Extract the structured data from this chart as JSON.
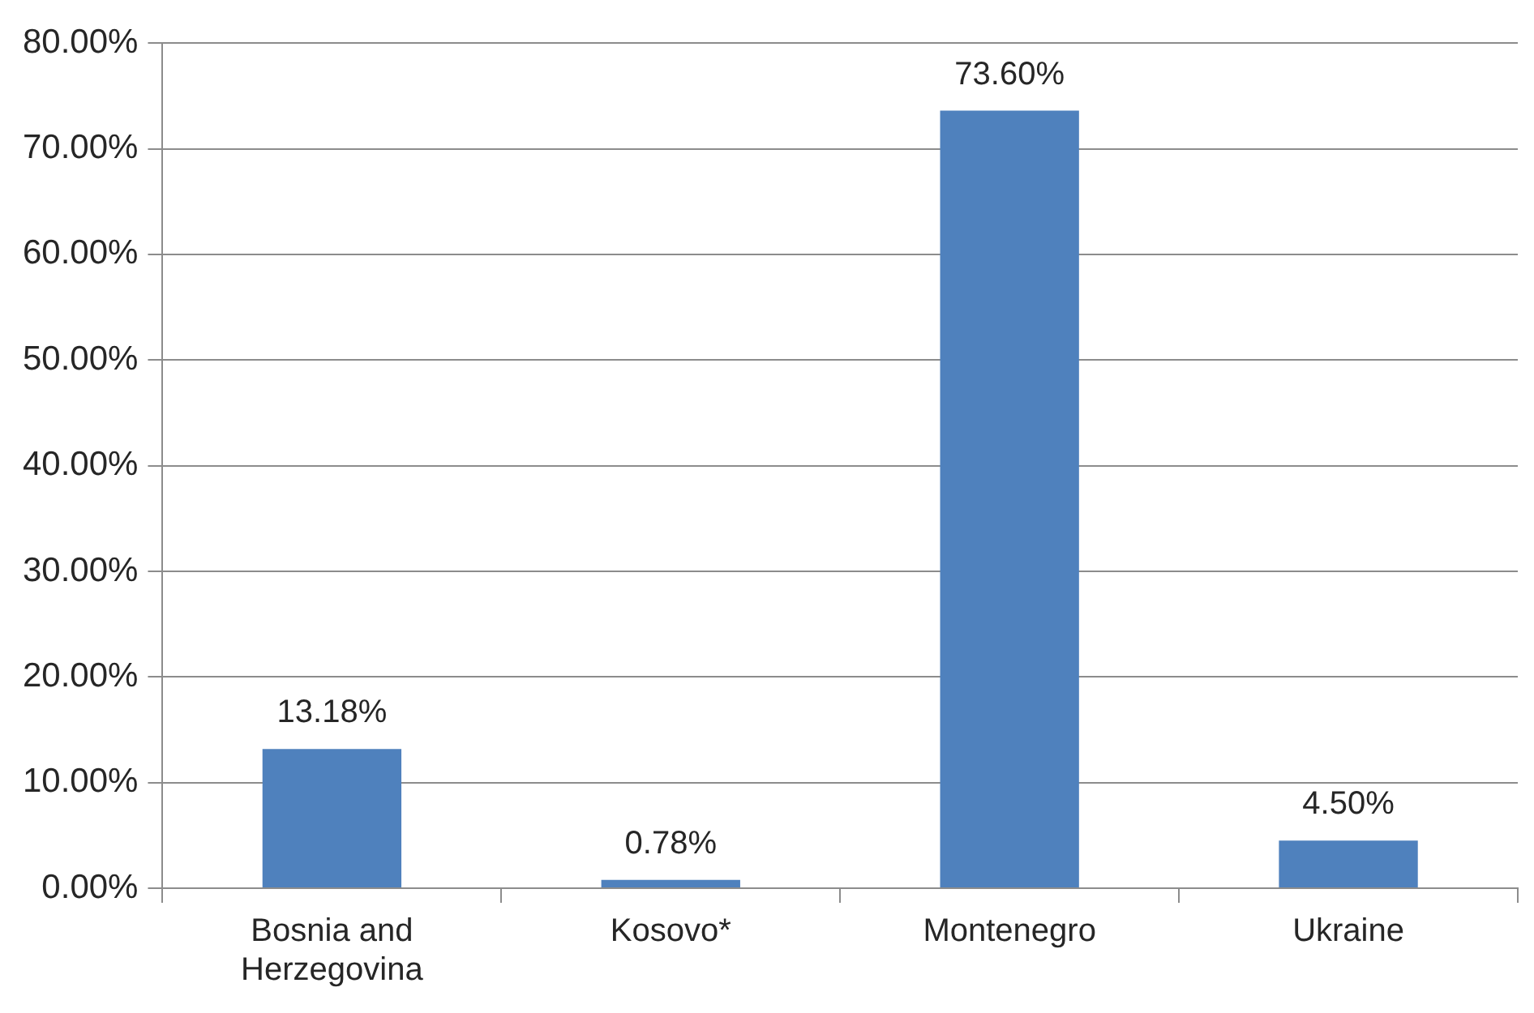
{
  "chart_data": {
    "type": "bar",
    "categories": [
      "Bosnia and Herzegovina",
      "Kosovo*",
      "Montenegro",
      "Ukraine"
    ],
    "values": [
      13.18,
      0.78,
      73.6,
      4.5
    ],
    "color": "#4f81bd",
    "value_labels": [
      "13.18%",
      "0.78%",
      "73.60%",
      "4.50%"
    ],
    "ylim": [
      0,
      80
    ],
    "yticks": [
      {
        "value": 0,
        "label": "0.00%"
      },
      {
        "value": 10,
        "label": "10.00%"
      },
      {
        "value": 20,
        "label": "20.00%"
      },
      {
        "value": 30,
        "label": "30.00%"
      },
      {
        "value": 40,
        "label": "40.00%"
      },
      {
        "value": 50,
        "label": "50.00%"
      },
      {
        "value": 60,
        "label": "60.00%"
      },
      {
        "value": 70,
        "label": "70.00%"
      },
      {
        "value": 80,
        "label": "80.00%"
      }
    ],
    "grid": "y"
  }
}
